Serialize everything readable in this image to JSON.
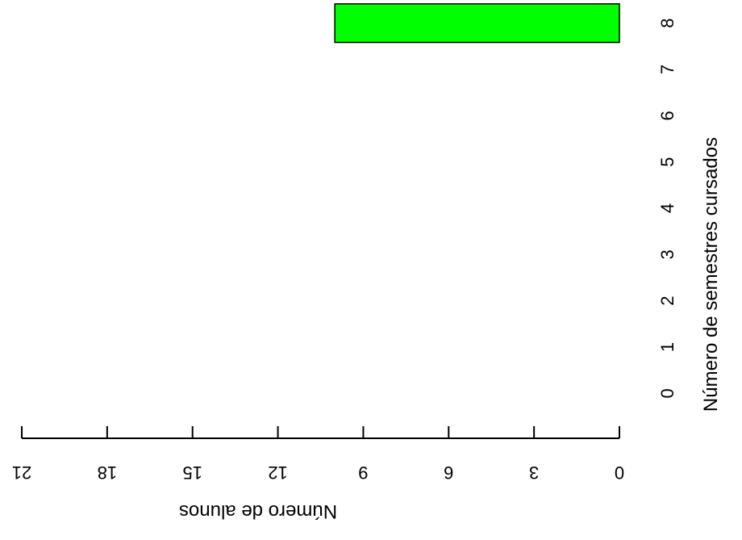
{
  "chart_data": {
    "type": "bar",
    "orientation": "horizontal",
    "categories": [
      "0",
      "1",
      "2",
      "3",
      "4",
      "5",
      "6",
      "7",
      "8"
    ],
    "values": [
      0,
      0,
      0,
      0,
      0,
      0,
      0,
      0,
      10
    ],
    "xlabel": "Número de alunos",
    "ylabel": "Número de semestres cursados",
    "x_ticks": [
      "0",
      "3",
      "6",
      "9",
      "12",
      "15",
      "18",
      "21"
    ],
    "xlim": [
      0,
      21
    ],
    "bar_color": "#00ff00",
    "grid": false,
    "legend": "none"
  }
}
